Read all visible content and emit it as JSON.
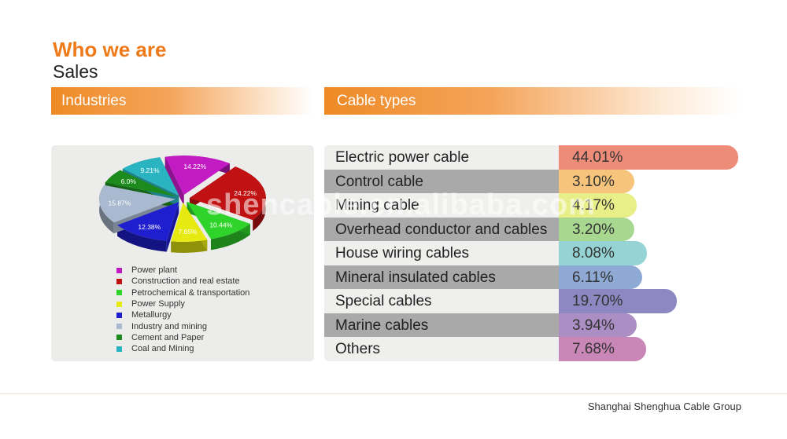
{
  "heading": {
    "title": "Who we are",
    "subtitle": "Sales"
  },
  "industries_header": "Industries",
  "cable_types_header": "Cable types",
  "footer": "Shanghai Shenghua Cable Group",
  "watermark": "shencable.en.alibaba.com",
  "chart_data": [
    {
      "type": "pie",
      "title": "",
      "legend_position": "below",
      "slices": [
        {
          "label": "Power plant",
          "value": 14.22,
          "display": "14.22%",
          "color": "#c21bc4"
        },
        {
          "label": "Construction and real estate",
          "value": 24.22,
          "display": "24.22%",
          "color": "#c01212"
        },
        {
          "label": "Petrochemical & transportation",
          "value": 10.44,
          "display": "10.44%",
          "color": "#2fd42a"
        },
        {
          "label": "Power Supply",
          "value": 7.65,
          "display": "7.65%",
          "color": "#e6ea10"
        },
        {
          "label": "Metallurgy",
          "value": 12.38,
          "display": "12.38%",
          "color": "#1f1fd0"
        },
        {
          "label": "Industry and mining",
          "value": 15.87,
          "display": "15.87%",
          "color": "#a9b9cf"
        },
        {
          "label": "Cement and Paper",
          "value": 6.0,
          "display": "6.0%",
          "color": "#1d8a1d"
        },
        {
          "label": "Coal and Mining",
          "value": 9.21,
          "display": "9.21%",
          "color": "#2ab3c0"
        }
      ]
    },
    {
      "type": "bar",
      "title": "",
      "orientation": "horizontal",
      "categories": [
        "Electric power cable",
        "Control cable",
        "Mining cable",
        "Overhead conductor and cables",
        "House wiring cables",
        "Mineral insulated cables",
        "Special cables",
        "Marine cables",
        "Others"
      ],
      "values": [
        44.01,
        3.1,
        4.17,
        3.2,
        8.08,
        6.11,
        19.7,
        3.94,
        7.68
      ],
      "value_labels": [
        "44.01%",
        "3.10%",
        "4.17%",
        "3.20%",
        "8.08%",
        "6.11%",
        "19.70%",
        "3.94%",
        "7.68%"
      ],
      "colors": [
        "#ee8c7a",
        "#f6c47a",
        "#e9ef88",
        "#a8d890",
        "#96d3d4",
        "#8ea9d3",
        "#8d88c2",
        "#ab8ec4",
        "#c987b8"
      ],
      "row_colors": [
        "#efefed",
        "#a9a9a9"
      ]
    }
  ]
}
